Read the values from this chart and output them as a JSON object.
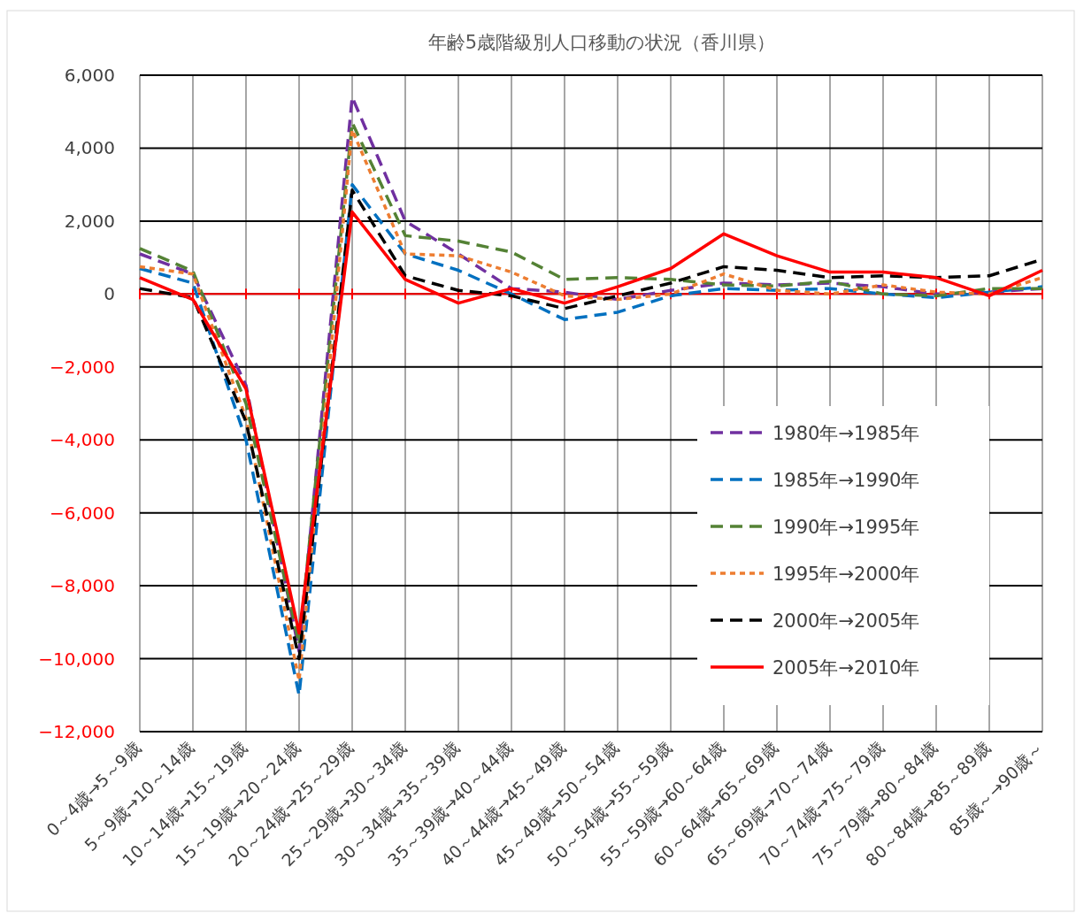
{
  "chart_data": {
    "type": "line",
    "title": "年齢5歳階級別人口移動の状況（香川県）",
    "categories": [
      "0～4歳→5～9歳",
      "5～9歳→10～14歳",
      "10～14歳→15～19歳",
      "15～19歳→20～24歳",
      "20～24歳→25～29歳",
      "25～29歳→30～34歳",
      "30～34歳→35～39歳",
      "35～39歳→40～44歳",
      "40～44歳→45～49歳",
      "45～49歳→50～54歳",
      "50～54歳→55～59歳",
      "55～59歳→60～64歳",
      "60～64歳→65～69歳",
      "65～69歳→70～74歳",
      "70～74歳→75～79歳",
      "75～79歳→80～84歳",
      "80～84歳→85～89歳",
      "85歳～→90歳～"
    ],
    "series": [
      {
        "name": "1980年→1985年",
        "color": "#7030a0",
        "line_style": "dashed",
        "values": [
          1100,
          550,
          -2500,
          -9800,
          5400,
          2000,
          1100,
          150,
          50,
          -150,
          100,
          300,
          250,
          300,
          200,
          0,
          50,
          150
        ]
      },
      {
        "name": "1985年→1990年",
        "color": "#0070c0",
        "line_style": "dashed",
        "values": [
          700,
          300,
          -4000,
          -11000,
          3000,
          1100,
          650,
          0,
          -700,
          -500,
          -50,
          150,
          100,
          150,
          0,
          -100,
          50,
          200
        ]
      },
      {
        "name": "1990年→1995年",
        "color": "#548235",
        "line_style": "dashed",
        "values": [
          1250,
          630,
          -3000,
          -9600,
          4700,
          1600,
          1450,
          1150,
          400,
          450,
          400,
          250,
          220,
          350,
          0,
          -50,
          150,
          150
        ]
      },
      {
        "name": "1995年→2000年",
        "color": "#ed7d31",
        "line_style": "dotted",
        "values": [
          750,
          550,
          -3400,
          -10600,
          4500,
          1100,
          1050,
          600,
          -50,
          -150,
          0,
          550,
          100,
          0,
          250,
          50,
          0,
          450
        ]
      },
      {
        "name": "2000年→2005年",
        "color": "#000000",
        "line_style": "dashed",
        "values": [
          150,
          -100,
          -3500,
          -10000,
          2850,
          500,
          100,
          -50,
          -400,
          -50,
          300,
          750,
          650,
          450,
          500,
          450,
          500,
          950
        ]
      },
      {
        "name": "2005年→2010年",
        "color": "#ff0000",
        "line_style": "solid",
        "values": [
          450,
          -150,
          -2600,
          -9300,
          2250,
          400,
          -250,
          150,
          -250,
          200,
          700,
          1650,
          1050,
          600,
          600,
          450,
          -50,
          650
        ]
      }
    ],
    "ylim": [
      -12000,
      6000
    ],
    "yticks": [
      {
        "value": -12000,
        "label": "−12,000"
      },
      {
        "value": -10000,
        "label": "−10,000"
      },
      {
        "value": -8000,
        "label": "−8,000"
      },
      {
        "value": -6000,
        "label": "−6,000"
      },
      {
        "value": -4000,
        "label": "−4,000"
      },
      {
        "value": -2000,
        "label": "−2,000"
      },
      {
        "value": 0,
        "label": "0"
      },
      {
        "value": 2000,
        "label": "2,000"
      },
      {
        "value": 4000,
        "label": "4,000"
      },
      {
        "value": 6000,
        "label": "6,000"
      }
    ],
    "ref_lines": [
      {
        "axis": "y",
        "value": 0,
        "color": "#ff0000"
      }
    ],
    "grid": true,
    "legend": "bottom right"
  }
}
